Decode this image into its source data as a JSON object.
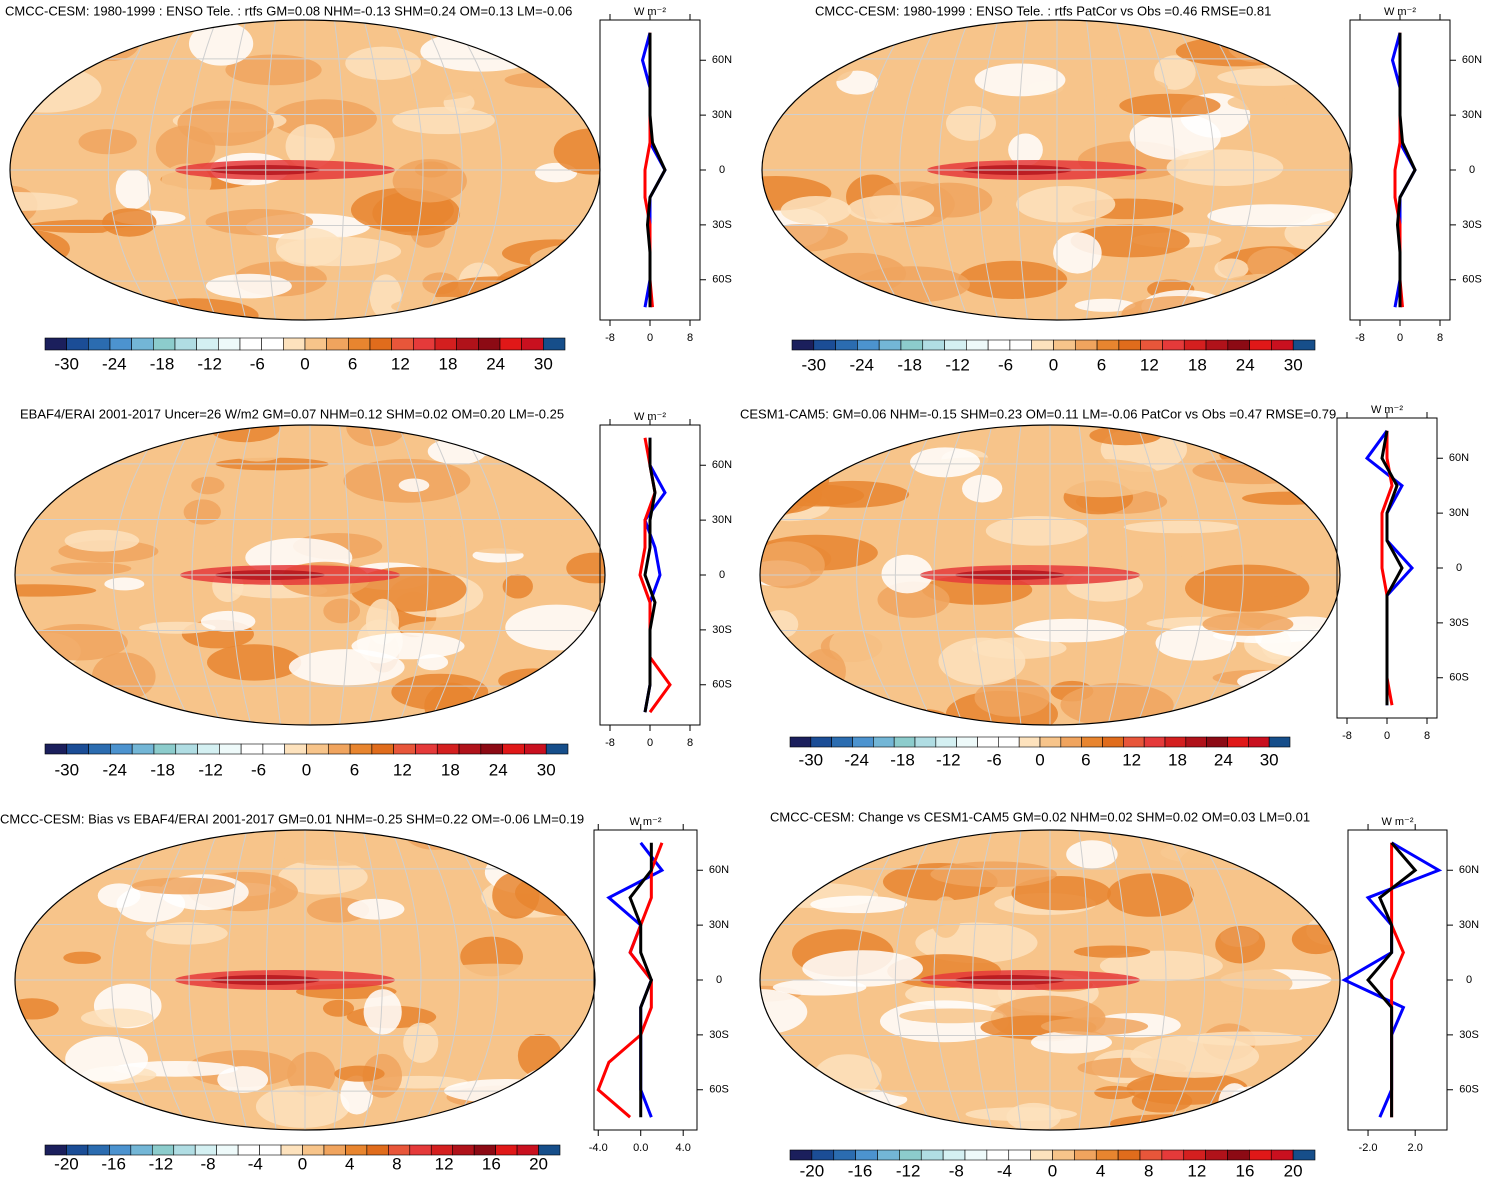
{
  "colors": [
    "#1b1f5c",
    "#1b4d96",
    "#2b6cb0",
    "#4c93cf",
    "#73b6d6",
    "#8ccccc",
    "#b0dde3",
    "#d4f0f2",
    "#eefafa",
    "#ffffff",
    "#ffffff",
    "#fde2bd",
    "#f7c48a",
    "#f0a45e",
    "#e8852f",
    "#e06c1c",
    "#e8563a",
    "#e53a3a",
    "#d41f1f",
    "#b0121a",
    "#8c0a14",
    "#e01818",
    "#c9101f",
    "#164e8a"
  ],
  "panels": [
    {
      "title": "CMCC-CESM: 1980-1999 : ENSO Tele. : rtfs GM=0.08 NHM=-0.13 SHM=0.24 OM=0.13 LM=-0.06",
      "colorbar_labels": [
        -30,
        -24,
        -18,
        -12,
        -6,
        0,
        6,
        12,
        18,
        24,
        30
      ],
      "zonal": {
        "units": "W m⁻²",
        "xlim": [
          -10,
          10
        ],
        "ylim": [
          -82,
          82
        ],
        "xticks": [
          -8,
          0,
          8
        ],
        "yticks": [
          {
            "value": 60,
            "label": "60N"
          },
          {
            "value": 30,
            "label": "30N"
          },
          0,
          {
            "value": -30,
            "label": "30S"
          },
          {
            "value": -60,
            "label": "60S"
          }
        ],
        "lat": [
          75,
          60,
          45,
          30,
          15,
          0,
          -15,
          -30,
          -45,
          -60,
          -75
        ],
        "series": [
          {
            "color": "#0000ff",
            "values": [
              0,
              -1.5,
              0,
              0,
              0,
              3,
              0,
              0,
              0,
              0,
              -1
            ]
          },
          {
            "color": "#ff0000",
            "values": [
              0,
              0,
              0,
              0,
              0,
              -1,
              -1,
              0,
              0,
              0,
              0.5
            ]
          },
          {
            "color": "#000000",
            "values": [
              0,
              0,
              0,
              0,
              0.5,
              3,
              0,
              -0.5,
              0,
              0,
              0
            ]
          }
        ]
      }
    },
    {
      "title": "CMCC-CESM: 1980-1999 : ENSO Tele. : rtfs PatCor vs Obs =0.46 RMSE=0.81",
      "colorbar_labels": [
        -30,
        -24,
        -18,
        -12,
        -6,
        0,
        6,
        12,
        18,
        24,
        30
      ],
      "zonal": {
        "units": "W m⁻²",
        "xlim": [
          -10,
          10
        ],
        "ylim": [
          -82,
          82
        ],
        "xticks": [
          -8,
          0,
          8
        ],
        "yticks": [
          {
            "value": 60,
            "label": "60N"
          },
          {
            "value": 30,
            "label": "30N"
          },
          0,
          {
            "value": -30,
            "label": "30S"
          },
          {
            "value": -60,
            "label": "60S"
          }
        ],
        "lat": [
          75,
          60,
          45,
          30,
          15,
          0,
          -15,
          -30,
          -45,
          -60,
          -75
        ],
        "series": [
          {
            "color": "#0000ff",
            "values": [
              0,
              -1.5,
              0,
              0,
              0,
              3,
              0,
              0,
              0,
              0,
              -1
            ]
          },
          {
            "color": "#ff0000",
            "values": [
              0,
              0,
              0,
              0,
              0,
              -1,
              -1,
              0,
              0,
              0,
              0.5
            ]
          },
          {
            "color": "#000000",
            "values": [
              0,
              0,
              0,
              0,
              0.5,
              3,
              0,
              -0.5,
              0,
              0,
              0
            ]
          }
        ]
      }
    },
    {
      "title": "EBAF4/ERAI 2001-2017 Uncer=26 W/m2 GM=0.07 NHM=0.12 SHM=0.02 OM=0.20 LM=-0.25",
      "colorbar_labels": [
        -30,
        -24,
        -18,
        -12,
        -6,
        0,
        6,
        12,
        18,
        24,
        30
      ],
      "zonal": {
        "units": "W m⁻²",
        "xlim": [
          -10,
          10
        ],
        "ylim": [
          -82,
          82
        ],
        "xticks": [
          -8,
          0,
          8
        ],
        "yticks": [
          {
            "value": 60,
            "label": "60N"
          },
          {
            "value": 30,
            "label": "30N"
          },
          0,
          {
            "value": -30,
            "label": "30S"
          },
          {
            "value": -60,
            "label": "60S"
          }
        ],
        "lat": [
          75,
          60,
          45,
          30,
          15,
          0,
          -15,
          -30,
          -45,
          -60,
          -75
        ],
        "series": [
          {
            "color": "#0000ff",
            "values": [
              0,
              0,
              3,
              -1,
              1,
              2,
              0,
              0,
              0,
              0,
              -1
            ]
          },
          {
            "color": "#ff0000",
            "values": [
              -1,
              0,
              1,
              -1,
              -1,
              -2,
              0,
              0,
              0,
              4,
              0
            ]
          },
          {
            "color": "#000000",
            "values": [
              0,
              0,
              1,
              0,
              0,
              -1,
              1,
              0,
              0,
              0,
              -1
            ]
          }
        ]
      }
    },
    {
      "title": "CESM1-CAM5: GM=0.06 NHM=-0.15 SHM=0.23 OM=0.11 LM=-0.06 PatCor vs Obs =0.47 RMSE=0.79",
      "colorbar_labels": [
        -30,
        -24,
        -18,
        -12,
        -6,
        0,
        6,
        12,
        18,
        24,
        30
      ],
      "zonal": {
        "units": "W m⁻²",
        "xlim": [
          -10,
          10
        ],
        "ylim": [
          -82,
          82
        ],
        "xticks": [
          -8,
          0,
          8
        ],
        "yticks": [
          {
            "value": 60,
            "label": "60N"
          },
          {
            "value": 30,
            "label": "30N"
          },
          0,
          {
            "value": -30,
            "label": "30S"
          },
          {
            "value": -60,
            "label": "60S"
          }
        ],
        "lat": [
          75,
          60,
          45,
          30,
          15,
          0,
          -15,
          -30,
          -45,
          -60,
          -75
        ],
        "series": [
          {
            "color": "#0000ff",
            "values": [
              0,
              -4,
              3,
              0,
              0,
              5,
              0,
              0,
              0,
              0,
              0
            ]
          },
          {
            "color": "#ff0000",
            "values": [
              0,
              0,
              1,
              -1,
              -1,
              -1,
              0,
              0,
              0,
              0,
              1
            ]
          },
          {
            "color": "#000000",
            "values": [
              0,
              -1,
              2,
              0,
              0,
              3,
              0,
              0,
              0,
              0,
              0
            ]
          }
        ]
      }
    },
    {
      "title": "CMCC-CESM: Bias vs EBAF4/ERAI 2001-2017 GM=0.01 NHM=-0.25 SHM=0.22 OM=-0.06 LM=0.19",
      "colorbar_labels": [
        -20,
        -16,
        -12,
        -8,
        -4,
        0,
        4,
        8,
        12,
        16,
        20
      ],
      "zonal": {
        "units": "W m⁻²",
        "xlim": [
          -4.4,
          5.3
        ],
        "ylim": [
          -82,
          82
        ],
        "xticks": [
          {
            "value": -4,
            "label": "-4.0"
          },
          {
            "value": 0,
            "label": "0.0"
          },
          {
            "value": 4,
            "label": "4.0"
          }
        ],
        "yticks": [
          {
            "value": 60,
            "label": "60N"
          },
          {
            "value": 30,
            "label": "30N"
          },
          0,
          {
            "value": -30,
            "label": "30S"
          },
          {
            "value": -60,
            "label": "60S"
          }
        ],
        "lat": [
          75,
          60,
          45,
          30,
          15,
          0,
          -15,
          -30,
          -45,
          -60,
          -75
        ],
        "series": [
          {
            "color": "#0000ff",
            "values": [
              0,
              2,
              -3,
              0,
              -1,
              1,
              0,
              0,
              0,
              0,
              1
            ]
          },
          {
            "color": "#ff0000",
            "values": [
              2,
              1,
              1,
              0,
              -1,
              1,
              1,
              0,
              -3,
              -4,
              -1
            ]
          },
          {
            "color": "#000000",
            "values": [
              1,
              1,
              -1,
              0,
              0,
              1,
              0,
              0,
              0,
              0,
              0
            ]
          }
        ]
      }
    },
    {
      "title": "CMCC-CESM: Change vs CESM1-CAM5 GM=0.02 NHM=0.02 SHM=0.02 OM=0.03 LM=0.01",
      "colorbar_labels": [
        -20,
        -16,
        -12,
        -8,
        -4,
        0,
        4,
        8,
        12,
        16,
        20
      ],
      "zonal": {
        "units": "W m⁻²",
        "xlim": [
          -3.7,
          4.7
        ],
        "ylim": [
          -82,
          82
        ],
        "xticks": [
          {
            "value": -2,
            "label": "-2.0"
          },
          {
            "value": 2,
            "label": "2.0"
          }
        ],
        "yticks": [
          {
            "value": 60,
            "label": "60N"
          },
          {
            "value": 30,
            "label": "30N"
          },
          0,
          {
            "value": -30,
            "label": "30S"
          },
          {
            "value": -60,
            "label": "60S"
          }
        ],
        "lat": [
          75,
          60,
          45,
          30,
          15,
          0,
          -15,
          -30,
          -45,
          -60,
          -75
        ],
        "series": [
          {
            "color": "#0000ff",
            "values": [
              0,
              4,
              -2,
              0,
              0,
              -4,
              1,
              0,
              0,
              0,
              -1
            ]
          },
          {
            "color": "#ff0000",
            "values": [
              0,
              0,
              0,
              0,
              1,
              0,
              0,
              0,
              0,
              0,
              0
            ]
          },
          {
            "color": "#000000",
            "values": [
              0,
              2,
              -1,
              0,
              0,
              -2,
              0,
              0,
              0,
              0,
              0
            ]
          }
        ]
      }
    }
  ]
}
